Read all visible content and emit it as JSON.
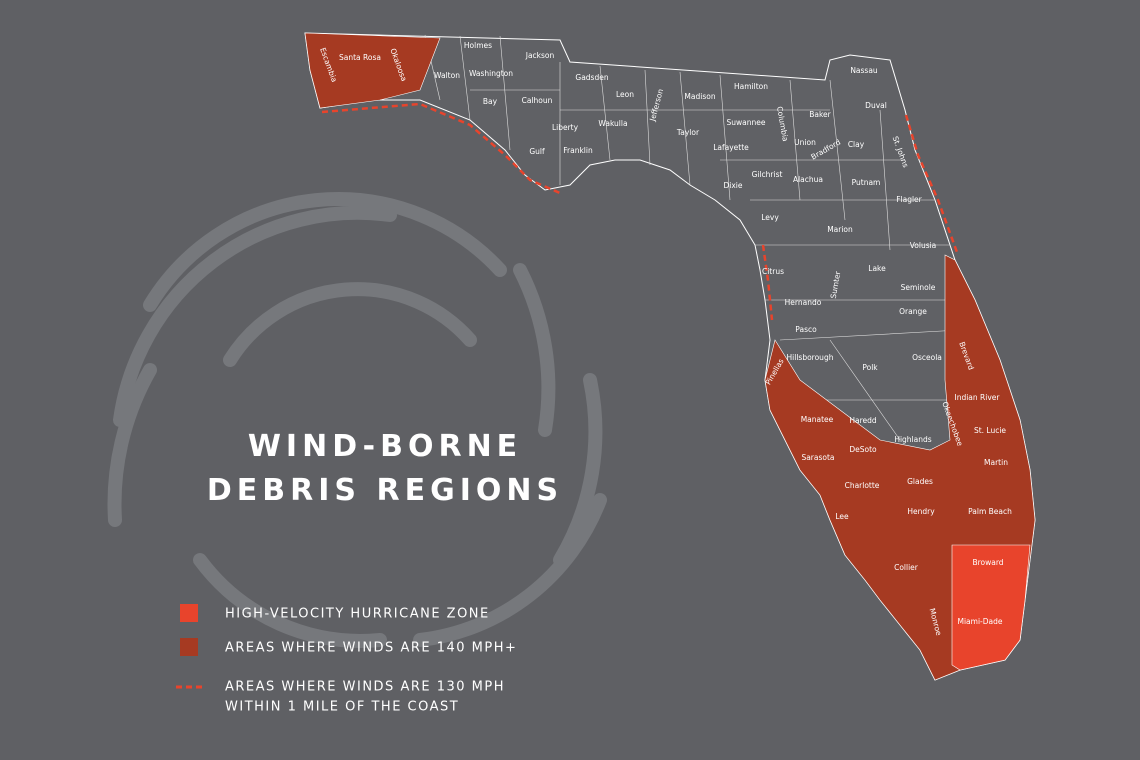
{
  "title": [
    "WIND-BORNE",
    "DEBRIS REGIONS"
  ],
  "legend": [
    "HIGH-VELOCITY HURRICANE ZONE",
    "AREAS WHERE WINDS ARE 140 MPH+",
    "AREAS WHERE WINDS ARE 130 MPH",
    "WITHIN 1 MILE OF THE COAST"
  ],
  "counties": [
    "Escambia",
    "Santa Rosa",
    "Okaloosa",
    "Walton",
    "Holmes",
    "Washington",
    "Jackson",
    "Bay",
    "Calhoun",
    "Gadsden",
    "Leon",
    "Jefferson",
    "Madison",
    "Hamilton",
    "Liberty",
    "Wakulla",
    "Taylor",
    "Suwannee",
    "Columbia",
    "Baker",
    "Nassau",
    "Duval",
    "Gulf",
    "Franklin",
    "Lafayette",
    "Union",
    "Bradford",
    "Clay",
    "St. Johns",
    "Gilchrist",
    "Dixie",
    "Alachua",
    "Putnam",
    "Flagler",
    "Levy",
    "Marion",
    "Volusia",
    "Lake",
    "Citrus",
    "Sumter",
    "Seminole",
    "Hernando",
    "Orange",
    "Pasco",
    "Brevard",
    "Hillsborough",
    "Pinellas",
    "Polk",
    "Osceola",
    "Indian River",
    "Manatee",
    "Haredd",
    "Okeechobee",
    "Highlands",
    "St. Lucie",
    "DeSoto",
    "Sarasota",
    "Martin",
    "Charlotte",
    "Glades",
    "Palm Beach",
    "Lee",
    "Hendry",
    "Collier",
    "Broward",
    "Monroe",
    "Miami-Dade"
  ]
}
